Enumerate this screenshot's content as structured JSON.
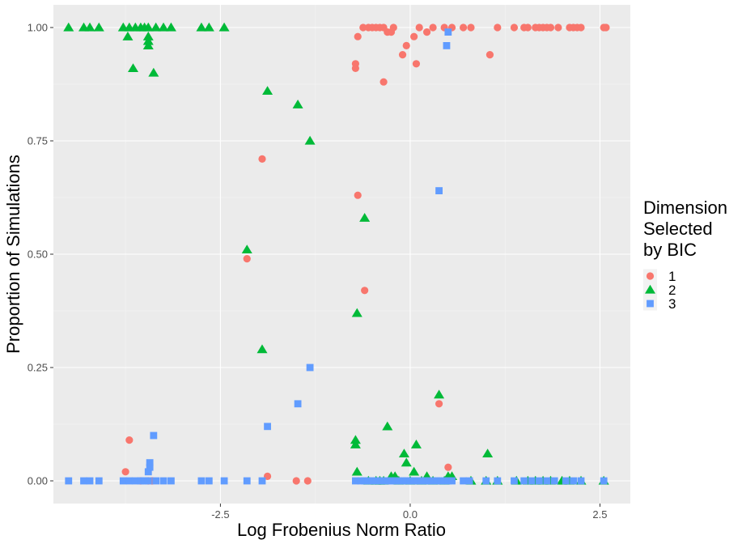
{
  "chart_data": {
    "type": "scatter",
    "xlabel": "Log Frobenius Norm Ratio",
    "ylabel": "Proportion of Simulations",
    "xlim": [
      -4.7,
      2.9
    ],
    "ylim": [
      -0.05,
      1.05
    ],
    "x_ticks": [
      -2.5,
      0.0,
      2.5
    ],
    "x_tick_labels": [
      "-2.5",
      "0.0",
      "2.5"
    ],
    "y_ticks": [
      0,
      0.25,
      0.5,
      0.75,
      1.0
    ],
    "y_tick_labels": [
      "0.00",
      "0.25",
      "0.50",
      "0.75",
      "1.00"
    ],
    "grid": true,
    "legend": {
      "title_lines": [
        "Dimension",
        "Selected",
        "by BIC"
      ],
      "placement": "right"
    },
    "series": [
      {
        "name": "1",
        "shape": "circle",
        "color": "#F8766D",
        "points": [
          [
            -3.75,
            0.02
          ],
          [
            -3.7,
            0.09
          ],
          [
            -3.55,
            0.0
          ],
          [
            -3.45,
            0.0
          ],
          [
            -3.4,
            0.0
          ],
          [
            -2.15,
            0.49
          ],
          [
            -1.95,
            0.71
          ],
          [
            -1.88,
            0.01
          ],
          [
            -1.5,
            0.0
          ],
          [
            -1.35,
            0.0
          ],
          [
            -0.72,
            0.92
          ],
          [
            -0.72,
            0.91
          ],
          [
            -0.69,
            0.98
          ],
          [
            -0.69,
            0.63
          ],
          [
            -0.62,
            1.0
          ],
          [
            -0.6,
            0.42
          ],
          [
            -0.55,
            1.0
          ],
          [
            -0.5,
            1.0
          ],
          [
            -0.45,
            1.0
          ],
          [
            -0.4,
            1.0
          ],
          [
            -0.35,
            1.0
          ],
          [
            -0.35,
            0.88
          ],
          [
            -0.3,
            0.99
          ],
          [
            -0.25,
            0.99
          ],
          [
            -0.22,
            1.0
          ],
          [
            -0.1,
            0.94
          ],
          [
            -0.05,
            0.96
          ],
          [
            0.05,
            0.98
          ],
          [
            0.08,
            0.92
          ],
          [
            0.12,
            1.0
          ],
          [
            0.22,
            0.99
          ],
          [
            0.3,
            1.0
          ],
          [
            0.38,
            0.17
          ],
          [
            0.45,
            1.0
          ],
          [
            0.5,
            0.03
          ],
          [
            0.55,
            1.0
          ],
          [
            0.7,
            1.0
          ],
          [
            0.8,
            1.0
          ],
          [
            1.05,
            0.94
          ],
          [
            1.15,
            1.0
          ],
          [
            1.37,
            1.0
          ],
          [
            1.5,
            1.0
          ],
          [
            1.55,
            1.0
          ],
          [
            1.65,
            1.0
          ],
          [
            1.75,
            1.0
          ],
          [
            1.85,
            1.0
          ],
          [
            1.95,
            1.0
          ],
          [
            2.1,
            1.0
          ],
          [
            2.15,
            1.0
          ],
          [
            2.25,
            1.0
          ],
          [
            2.55,
            1.0
          ],
          [
            2.58,
            1.0
          ],
          [
            1.8,
            1.0
          ],
          [
            1.7,
            1.0
          ],
          [
            2.2,
            1.0
          ]
        ]
      },
      {
        "name": "2",
        "shape": "triangle",
        "color": "#00BA38",
        "points": [
          [
            -4.5,
            1.0
          ],
          [
            -4.3,
            1.0
          ],
          [
            -4.22,
            1.0
          ],
          [
            -4.1,
            1.0
          ],
          [
            -3.78,
            1.0
          ],
          [
            -3.7,
            1.0
          ],
          [
            -3.62,
            1.0
          ],
          [
            -3.55,
            1.0
          ],
          [
            -3.5,
            1.0
          ],
          [
            -3.45,
            1.0
          ],
          [
            -3.35,
            1.0
          ],
          [
            -3.25,
            1.0
          ],
          [
            -3.15,
            1.0
          ],
          [
            -2.75,
            1.0
          ],
          [
            -2.65,
            1.0
          ],
          [
            -2.45,
            1.0
          ],
          [
            -3.72,
            0.98
          ],
          [
            -3.45,
            0.98
          ],
          [
            -3.45,
            0.97
          ],
          [
            -3.45,
            0.96
          ],
          [
            -3.65,
            0.91
          ],
          [
            -3.38,
            0.9
          ],
          [
            -1.88,
            0.86
          ],
          [
            -1.48,
            0.83
          ],
          [
            -1.32,
            0.75
          ],
          [
            -2.15,
            0.51
          ],
          [
            -0.6,
            0.58
          ],
          [
            -0.7,
            0.37
          ],
          [
            -1.95,
            0.29
          ],
          [
            -0.3,
            0.12
          ],
          [
            -0.72,
            0.09
          ],
          [
            -0.72,
            0.08
          ],
          [
            0.08,
            0.08
          ],
          [
            -0.08,
            0.06
          ],
          [
            1.02,
            0.06
          ],
          [
            -0.05,
            0.04
          ],
          [
            0.38,
            0.19
          ],
          [
            -0.7,
            0.02
          ],
          [
            0.05,
            0.02
          ],
          [
            -0.25,
            0.01
          ],
          [
            -0.2,
            0.01
          ],
          [
            0.22,
            0.01
          ],
          [
            0.5,
            0.01
          ],
          [
            0.55,
            0.01
          ],
          [
            -0.55,
            0.0
          ],
          [
            -0.45,
            0.0
          ],
          [
            -0.4,
            0.0
          ],
          [
            -0.35,
            0.0
          ],
          [
            -0.15,
            0.0
          ],
          [
            0.0,
            0.0
          ],
          [
            0.15,
            0.0
          ],
          [
            0.3,
            0.0
          ],
          [
            0.45,
            0.0
          ],
          [
            0.8,
            0.0
          ],
          [
            1.0,
            0.0
          ],
          [
            1.15,
            0.0
          ],
          [
            1.4,
            0.0
          ],
          [
            1.55,
            0.0
          ],
          [
            1.65,
            0.0
          ],
          [
            1.75,
            0.0
          ],
          [
            1.85,
            0.0
          ],
          [
            2.0,
            0.0
          ],
          [
            2.1,
            0.0
          ],
          [
            2.25,
            0.0
          ],
          [
            2.55,
            0.0
          ]
        ]
      },
      {
        "name": "3",
        "shape": "square",
        "color": "#619CFF",
        "points": [
          [
            -4.5,
            0.0
          ],
          [
            -4.3,
            0.0
          ],
          [
            -4.22,
            0.0
          ],
          [
            -4.1,
            0.0
          ],
          [
            -3.78,
            0.0
          ],
          [
            -3.7,
            0.0
          ],
          [
            -3.62,
            0.0
          ],
          [
            -3.55,
            0.0
          ],
          [
            -3.5,
            0.0
          ],
          [
            -3.45,
            0.0
          ],
          [
            -3.35,
            0.0
          ],
          [
            -3.25,
            0.0
          ],
          [
            -3.15,
            0.0
          ],
          [
            -2.75,
            0.0
          ],
          [
            -2.65,
            0.0
          ],
          [
            -2.45,
            0.0
          ],
          [
            -2.15,
            0.0
          ],
          [
            -1.95,
            0.0
          ],
          [
            -3.45,
            0.02
          ],
          [
            -3.43,
            0.03
          ],
          [
            -3.43,
            0.04
          ],
          [
            -3.38,
            0.1
          ],
          [
            -1.88,
            0.12
          ],
          [
            -1.48,
            0.17
          ],
          [
            -1.32,
            0.25
          ],
          [
            0.38,
            0.64
          ],
          [
            0.48,
            0.96
          ],
          [
            0.5,
            0.99
          ],
          [
            -0.72,
            0.0
          ],
          [
            -0.65,
            0.0
          ],
          [
            -0.6,
            0.0
          ],
          [
            -0.55,
            0.0
          ],
          [
            -0.5,
            0.0
          ],
          [
            -0.45,
            0.0
          ],
          [
            -0.4,
            0.0
          ],
          [
            -0.35,
            0.0
          ],
          [
            -0.3,
            0.0
          ],
          [
            -0.25,
            0.0
          ],
          [
            -0.2,
            0.0
          ],
          [
            -0.15,
            0.0
          ],
          [
            -0.1,
            0.0
          ],
          [
            -0.05,
            0.0
          ],
          [
            0.0,
            0.0
          ],
          [
            0.05,
            0.0
          ],
          [
            0.1,
            0.0
          ],
          [
            0.15,
            0.0
          ],
          [
            0.2,
            0.0
          ],
          [
            0.25,
            0.0
          ],
          [
            0.3,
            0.0
          ],
          [
            0.35,
            0.0
          ],
          [
            0.4,
            0.0
          ],
          [
            0.45,
            0.0
          ],
          [
            0.5,
            0.0
          ],
          [
            0.55,
            0.0
          ],
          [
            0.7,
            0.0
          ],
          [
            0.78,
            0.0
          ],
          [
            1.0,
            0.0
          ],
          [
            1.15,
            0.0
          ],
          [
            1.37,
            0.0
          ],
          [
            1.5,
            0.0
          ],
          [
            1.6,
            0.0
          ],
          [
            1.7,
            0.0
          ],
          [
            1.8,
            0.0
          ],
          [
            1.9,
            0.0
          ],
          [
            2.05,
            0.0
          ],
          [
            2.15,
            0.0
          ],
          [
            2.25,
            0.0
          ],
          [
            2.55,
            0.0
          ]
        ]
      }
    ]
  }
}
